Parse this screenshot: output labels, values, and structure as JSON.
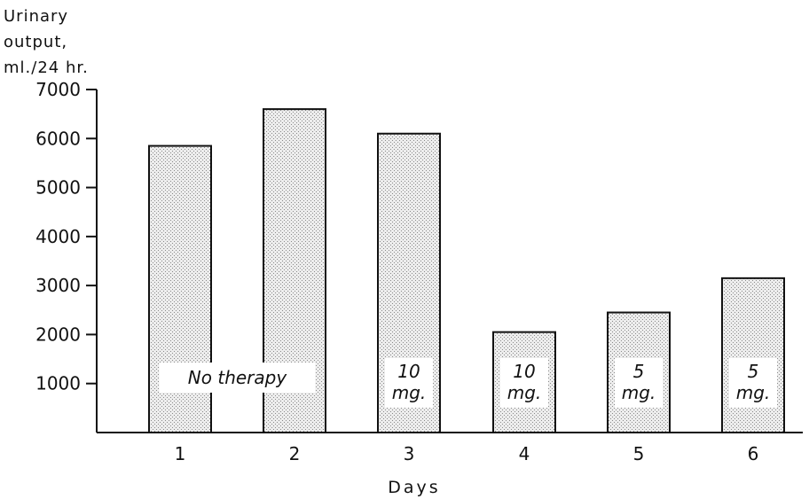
{
  "chart_data": {
    "type": "bar",
    "ylabel_lines": [
      "Urinary",
      "output,",
      "ml./24 hr."
    ],
    "xlabel": "Days",
    "categories": [
      "1",
      "2",
      "3",
      "4",
      "5",
      "6"
    ],
    "values": [
      5850,
      6600,
      6100,
      2050,
      2450,
      3150
    ],
    "ylim": [
      0,
      7000
    ],
    "yticks": [
      1000,
      2000,
      3000,
      4000,
      5000,
      6000,
      7000
    ],
    "grid": false,
    "bar_fill": "#d9d9d9",
    "annotations": [
      {
        "bar": 0,
        "span_to": 1,
        "lines": [
          "No therapy"
        ]
      },
      {
        "bar": 2,
        "lines": [
          "10",
          "mg."
        ]
      },
      {
        "bar": 3,
        "lines": [
          "10",
          "mg."
        ]
      },
      {
        "bar": 4,
        "lines": [
          "5",
          "mg."
        ]
      },
      {
        "bar": 5,
        "lines": [
          "5",
          "mg."
        ]
      }
    ]
  }
}
